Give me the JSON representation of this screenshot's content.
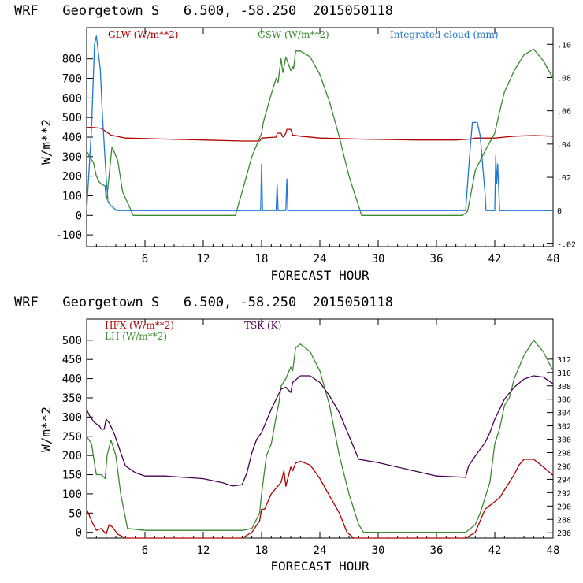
{
  "chart_data": [
    {
      "type": "line",
      "title": "WRF   Georgetown S   6.500, -58.250  2015050118",
      "xlabel": "FORECAST HOUR",
      "ylabel": "W/m**2",
      "xlim": [
        0,
        48
      ],
      "ylim": [
        -160,
        960
      ],
      "x_ticks": [
        6,
        12,
        18,
        24,
        30,
        36,
        42,
        48
      ],
      "y_ticks": [
        -100,
        0,
        100,
        200,
        300,
        400,
        500,
        600,
        700,
        800
      ],
      "y2_ticks": [
        {
          "value": -0.02,
          "label": "-.02"
        },
        {
          "value": 0,
          "label": "0"
        },
        {
          "value": 0.02,
          "label": ".02"
        },
        {
          "value": 0.04,
          "label": ".04"
        },
        {
          "value": 0.06,
          "label": ".06"
        },
        {
          "value": 0.08,
          "label": ".08"
        },
        {
          "value": 0.1,
          "label": ".10"
        }
      ],
      "y2lim": [
        -0.0217,
        0.1101
      ],
      "series": [
        {
          "name": "GLW (W/m**2)",
          "axis": "left",
          "color": "#b00000",
          "x": [
            0,
            0.5,
            1.5,
            2.5,
            4,
            8,
            12,
            16,
            17.8,
            18,
            19.5,
            19.6,
            20,
            20.2,
            20.5,
            20.6,
            21,
            21.2,
            22,
            24,
            28,
            34,
            38,
            39.5,
            40,
            42,
            44,
            46,
            48
          ],
          "y": [
            450,
            450,
            445,
            410,
            395,
            390,
            385,
            380,
            380,
            395,
            400,
            420,
            420,
            400,
            420,
            440,
            440,
            410,
            405,
            395,
            390,
            385,
            385,
            390,
            395,
            395,
            405,
            408,
            405
          ]
        },
        {
          "name": "GSW (W/m**2)",
          "axis": "left",
          "color": "#3a8a30",
          "x": [
            0,
            0.3,
            0.7,
            1.0,
            1.2,
            1.3,
            1.5,
            1.9,
            2.0,
            2.1,
            2.6,
            3.2,
            3.7,
            4.8,
            15.3,
            16,
            17,
            18,
            18.2,
            19,
            19.5,
            19.7,
            20,
            20.2,
            20.5,
            21,
            21.2,
            21.3,
            21.5,
            22,
            23,
            24,
            25,
            26,
            27,
            28.3,
            38.7,
            39.2,
            40,
            41,
            42,
            42.5,
            43,
            44,
            45,
            46,
            47,
            48
          ],
          "y": [
            330,
            300,
            270,
            200,
            180,
            170,
            160,
            150,
            80,
            100,
            350,
            280,
            120,
            0,
            0,
            120,
            300,
            420,
            480,
            620,
            700,
            680,
            800,
            730,
            810,
            740,
            760,
            750,
            840,
            840,
            810,
            720,
            580,
            400,
            200,
            0,
            0,
            20,
            230,
            330,
            420,
            530,
            630,
            740,
            820,
            850,
            790,
            700
          ]
        },
        {
          "name": "Integrated cloud (mm)",
          "axis": "right",
          "color": "#1f78d4",
          "x": [
            0,
            0.5,
            0.8,
            1.0,
            1.4,
            1.6,
            2.0,
            2.2,
            2.5,
            3.1,
            17.9,
            18,
            18.1,
            19.5,
            19.6,
            19.7,
            20.5,
            20.6,
            20.7,
            39,
            39.5,
            39.7,
            40.2,
            40.5,
            41,
            41.1,
            41.5,
            42,
            42.1,
            42.2,
            42.3,
            42.5,
            48
          ],
          "y": [
            0,
            0.05,
            0.1,
            0.105,
            0.085,
            0.06,
            0.02,
            0.005,
            0.003,
            0,
            0,
            0.028,
            0,
            0,
            0.016,
            0,
            0,
            0.019,
            0,
            0,
            0.04,
            0.053,
            0.053,
            0.045,
            0.01,
            0,
            0,
            0,
            0.033,
            0.016,
            0.028,
            0,
            0
          ]
        }
      ]
    },
    {
      "type": "line",
      "title": "WRF   Georgetown S   6.500, -58.250  2015050118",
      "xlabel": "FORECAST HOUR",
      "ylabel": "W/m**2",
      "xlim": [
        0,
        48
      ],
      "ylim": [
        -15,
        555
      ],
      "x_ticks": [
        6,
        12,
        18,
        24,
        30,
        36,
        42,
        48
      ],
      "y_ticks": [
        0,
        50,
        100,
        150,
        200,
        250,
        300,
        350,
        400,
        450,
        500
      ],
      "y2_ticks": [
        {
          "value": 286,
          "label": "286"
        },
        {
          "value": 288,
          "label": "288"
        },
        {
          "value": 290,
          "label": "290"
        },
        {
          "value": 292,
          "label": "292"
        },
        {
          "value": 294,
          "label": "294"
        },
        {
          "value": 296,
          "label": "296"
        },
        {
          "value": 298,
          "label": "298"
        },
        {
          "value": 300,
          "label": "300"
        },
        {
          "value": 302,
          "label": "302"
        },
        {
          "value": 304,
          "label": "304"
        },
        {
          "value": 306,
          "label": "306"
        },
        {
          "value": 308,
          "label": "308"
        },
        {
          "value": 310,
          "label": "310"
        },
        {
          "value": 312,
          "label": "312"
        }
      ],
      "y2lim": [
        285.2,
        318
      ],
      "series": [
        {
          "name": "HFX (W/m**2)",
          "axis": "left",
          "color": "#b00000",
          "x": [
            0,
            0.5,
            1,
            1.5,
            2,
            2.3,
            2.6,
            3.2,
            4,
            16,
            17,
            17.8,
            18,
            18.3,
            19,
            20,
            20.3,
            20.5,
            21,
            21.2,
            21.5,
            22,
            23,
            24,
            25,
            26,
            26.8,
            27.5,
            39,
            40,
            40.5,
            41,
            42,
            42.5,
            43,
            44,
            44.5,
            45,
            46,
            47,
            48
          ],
          "y": [
            60,
            30,
            5,
            10,
            -5,
            20,
            15,
            -5,
            -15,
            -15,
            0,
            30,
            60,
            60,
            100,
            130,
            160,
            120,
            170,
            160,
            180,
            185,
            175,
            140,
            95,
            50,
            0,
            -15,
            -15,
            0,
            30,
            60,
            80,
            90,
            110,
            150,
            175,
            190,
            190,
            170,
            148
          ]
        },
        {
          "name": "LH (W/m**2)",
          "axis": "left",
          "color": "#3a8a30",
          "x": [
            0,
            0.5,
            0.8,
            1.0,
            1.5,
            1.9,
            2.0,
            2.1,
            2.5,
            3,
            3.5,
            4.2,
            6,
            16,
            17,
            17.8,
            18,
            18.5,
            19,
            19.5,
            19.8,
            20,
            20.5,
            21,
            21.2,
            21.5,
            22,
            23,
            24,
            25,
            26,
            27,
            28,
            28.5,
            39,
            40,
            40.5,
            41,
            41.5,
            42,
            42.5,
            43,
            43.5,
            44,
            45,
            46,
            47,
            48
          ],
          "y": [
            250,
            230,
            180,
            150,
            150,
            140,
            170,
            200,
            240,
            200,
            100,
            10,
            5,
            5,
            10,
            50,
            100,
            200,
            230,
            300,
            340,
            380,
            400,
            430,
            420,
            480,
            490,
            470,
            420,
            330,
            200,
            100,
            20,
            0,
            0,
            20,
            50,
            90,
            130,
            230,
            270,
            330,
            350,
            400,
            460,
            500,
            470,
            420
          ]
        },
        {
          "name": "TSK (K)",
          "axis": "right",
          "color": "#4b0055",
          "x": [
            0,
            0.3,
            0.8,
            1.3,
            1.5,
            1.8,
            2,
            2.3,
            2.8,
            3.5,
            4,
            5,
            6,
            8,
            10,
            12,
            14,
            15,
            16,
            16.5,
            17,
            17.5,
            18,
            19,
            20,
            20.5,
            21,
            21.2,
            22,
            23,
            24,
            25,
            26,
            27,
            28,
            30,
            33,
            36,
            39,
            39.3,
            40,
            41,
            41.5,
            42,
            42.5,
            43,
            44,
            45,
            46,
            47,
            48
          ],
          "y": [
            304.5,
            303.5,
            302.5,
            302,
            301.5,
            301.5,
            303,
            302.5,
            301,
            298,
            296,
            295,
            294.5,
            294.5,
            294.3,
            294.1,
            293.5,
            293,
            293.2,
            295,
            298,
            300,
            301,
            304.5,
            307.5,
            307.8,
            307,
            308.5,
            309.5,
            309.5,
            308.5,
            306.5,
            304,
            300.5,
            297,
            296.5,
            295.5,
            294.5,
            294.3,
            296,
            297.5,
            299.5,
            301,
            303,
            304.5,
            306,
            307.8,
            309,
            309.5,
            309.3,
            308.3
          ]
        }
      ]
    }
  ]
}
